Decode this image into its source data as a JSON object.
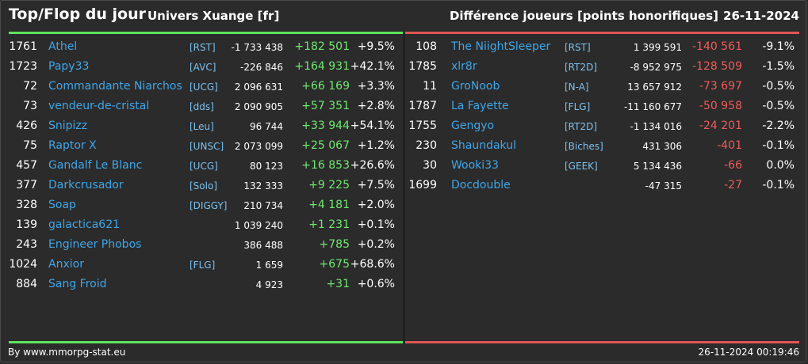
{
  "header": {
    "title": "Top/Flop du jour",
    "universe": "Univers Xuange [fr]",
    "metric": "Différence joueurs [points honorifiques]",
    "date": "26-11-2024"
  },
  "colors": {
    "gain": "#6fe86f",
    "loss": "#ef5b5b",
    "name": "#3fa6e8",
    "top_bar": "#5ce35c",
    "flop_bar": "#e05555"
  },
  "top": [
    {
      "rank": "1761",
      "name": "Athel",
      "tag": "[RST]",
      "total": "-1 733 438",
      "diff": "+182 501",
      "pct": "+9.5%"
    },
    {
      "rank": "1723",
      "name": "Papy33",
      "tag": "[AVC]",
      "total": "-226 846",
      "diff": "+164 931",
      "pct": "+42.1%"
    },
    {
      "rank": "72",
      "name": "Commandante Niarchos",
      "tag": "[UCG]",
      "total": "2 096 631",
      "diff": "+66 169",
      "pct": "+3.3%"
    },
    {
      "rank": "73",
      "name": "vendeur-de-cristal",
      "tag": "[dds]",
      "total": "2 090 905",
      "diff": "+57 351",
      "pct": "+2.8%"
    },
    {
      "rank": "426",
      "name": "Snipizz",
      "tag": "[Leu]",
      "total": "96 744",
      "diff": "+33 944",
      "pct": "+54.1%"
    },
    {
      "rank": "75",
      "name": "Raptor X",
      "tag": "[UNSC]",
      "total": "2 073 099",
      "diff": "+25 067",
      "pct": "+1.2%"
    },
    {
      "rank": "457",
      "name": "Gandalf Le Blanc",
      "tag": "[UCG]",
      "total": "80 123",
      "diff": "+16 853",
      "pct": "+26.6%"
    },
    {
      "rank": "377",
      "name": "Darkcrusador",
      "tag": "[Solo]",
      "total": "132 333",
      "diff": "+9 225",
      "pct": "+7.5%"
    },
    {
      "rank": "328",
      "name": "Soap",
      "tag": "[DIGGY]",
      "total": "210 734",
      "diff": "+4 181",
      "pct": "+2.0%"
    },
    {
      "rank": "139",
      "name": "galactica621",
      "tag": "",
      "total": "1 039 240",
      "diff": "+1 231",
      "pct": "+0.1%"
    },
    {
      "rank": "243",
      "name": "Engineer Phobos",
      "tag": "",
      "total": "386 488",
      "diff": "+785",
      "pct": "+0.2%"
    },
    {
      "rank": "1024",
      "name": "Anxior",
      "tag": "[FLG]",
      "total": "1 659",
      "diff": "+675",
      "pct": "+68.6%"
    },
    {
      "rank": "884",
      "name": "Sang Froid",
      "tag": "",
      "total": "4 923",
      "diff": "+31",
      "pct": "+0.6%"
    }
  ],
  "flop": [
    {
      "rank": "108",
      "name": "The NiightSleeper",
      "tag": "[RST]",
      "total": "1 399 591",
      "diff": "-140 561",
      "pct": "-9.1%"
    },
    {
      "rank": "1785",
      "name": "xlr8r",
      "tag": "[RT2D]",
      "total": "-8 952 975",
      "diff": "-128 509",
      "pct": "-1.5%"
    },
    {
      "rank": "11",
      "name": "GroNoob",
      "tag": "[N-A]",
      "total": "13 657 912",
      "diff": "-73 697",
      "pct": "-0.5%"
    },
    {
      "rank": "1787",
      "name": "La Fayette",
      "tag": "[FLG]",
      "total": "-11 160 677",
      "diff": "-50 958",
      "pct": "-0.5%"
    },
    {
      "rank": "1755",
      "name": "Gengyo",
      "tag": "[RT2D]",
      "total": "-1 134 016",
      "diff": "-24 201",
      "pct": "-2.2%"
    },
    {
      "rank": "230",
      "name": "Shaundakul",
      "tag": "[Biches]",
      "total": "431 306",
      "diff": "-401",
      "pct": "-0.1%"
    },
    {
      "rank": "30",
      "name": "Wooki33",
      "tag": "[GEEK]",
      "total": "5 134 436",
      "diff": "-66",
      "pct": "0.0%"
    },
    {
      "rank": "1699",
      "name": "Docdouble",
      "tag": "",
      "total": "-47 315",
      "diff": "-27",
      "pct": "-0.1%"
    }
  ],
  "footer": {
    "source": "By www.mmorpg-stat.eu",
    "timestamp": "26-11-2024 00:19:46"
  }
}
